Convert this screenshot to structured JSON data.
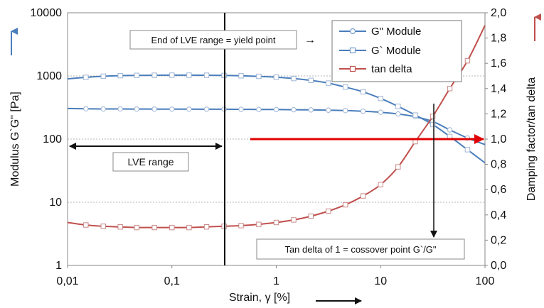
{
  "chart_data": {
    "type": "line",
    "x_scale": "log",
    "xlim": [
      0.01,
      100
    ],
    "xticks": [
      "0,01",
      "0,1",
      "1",
      "10",
      "100"
    ],
    "xlabel": "Strain, γ [%]",
    "y_left": {
      "label": "Modulus G`G\" [Pa]",
      "scale": "log",
      "lim": [
        1,
        10000
      ],
      "ticks": [
        "1",
        "10",
        "100",
        "1000",
        "10000"
      ]
    },
    "y_right": {
      "label": "Damping factor/tan delta",
      "scale": "linear",
      "lim": [
        0,
        2
      ],
      "ticks": [
        "0,0",
        "0,2",
        "0,4",
        "0,6",
        "0,8",
        "1,0",
        "1,2",
        "1,4",
        "1,6",
        "1,8",
        "2,0"
      ]
    },
    "grid": "horizontal major (left axis)",
    "legend_position": "top-right",
    "series": [
      {
        "name": "G\" Module",
        "axis": "left",
        "color": "#4a7ebb",
        "marker": "circle",
        "x": [
          0.01,
          0.015,
          0.022,
          0.032,
          0.046,
          0.068,
          0.1,
          0.146,
          0.215,
          0.316,
          0.46,
          0.68,
          1,
          1.47,
          2.15,
          3.16,
          4.6,
          6.8,
          10,
          14.7,
          21.5,
          31.6,
          46,
          68,
          100
        ],
        "y": [
          305,
          302,
          300,
          300,
          299,
          299,
          298,
          298,
          297,
          297,
          296,
          295,
          294,
          292,
          290,
          287,
          283,
          276,
          266,
          250,
          226,
          190,
          140,
          104,
          82
        ]
      },
      {
        "name": "G` Module",
        "axis": "left",
        "color": "#4a7ebb",
        "marker": "square",
        "x": [
          0.01,
          0.015,
          0.022,
          0.032,
          0.046,
          0.068,
          0.1,
          0.146,
          0.215,
          0.316,
          0.46,
          0.68,
          1,
          1.47,
          2.15,
          3.16,
          4.6,
          6.8,
          10,
          14.7,
          21.5,
          31.6,
          46,
          68,
          100
        ],
        "y": [
          900,
          950,
          990,
          1010,
          1020,
          1025,
          1028,
          1028,
          1025,
          1018,
          1005,
          985,
          955,
          910,
          850,
          770,
          665,
          560,
          440,
          330,
          240,
          170,
          110,
          68,
          42
        ]
      },
      {
        "name": "tan delta",
        "axis": "right",
        "color": "#c0504d",
        "marker": "square-open",
        "x": [
          0.01,
          0.015,
          0.022,
          0.032,
          0.046,
          0.068,
          0.1,
          0.146,
          0.215,
          0.316,
          0.46,
          0.68,
          1,
          1.47,
          2.15,
          3.16,
          4.6,
          6.8,
          10,
          14.7,
          21.5,
          31.6,
          46,
          68,
          100
        ],
        "y": [
          0.34,
          0.32,
          0.31,
          0.305,
          0.3,
          0.3,
          0.3,
          0.3,
          0.305,
          0.31,
          0.315,
          0.325,
          0.34,
          0.36,
          0.39,
          0.43,
          0.48,
          0.55,
          0.64,
          0.78,
          0.98,
          1.18,
          1.4,
          1.62,
          1.9
        ]
      }
    ],
    "annotations": {
      "yield_box": "End of LVE range = yield point",
      "yield_arrow": "→",
      "lve_box": "LVE range",
      "tan_box": "Tan delta of 1 = cossover point G`/G\""
    }
  }
}
